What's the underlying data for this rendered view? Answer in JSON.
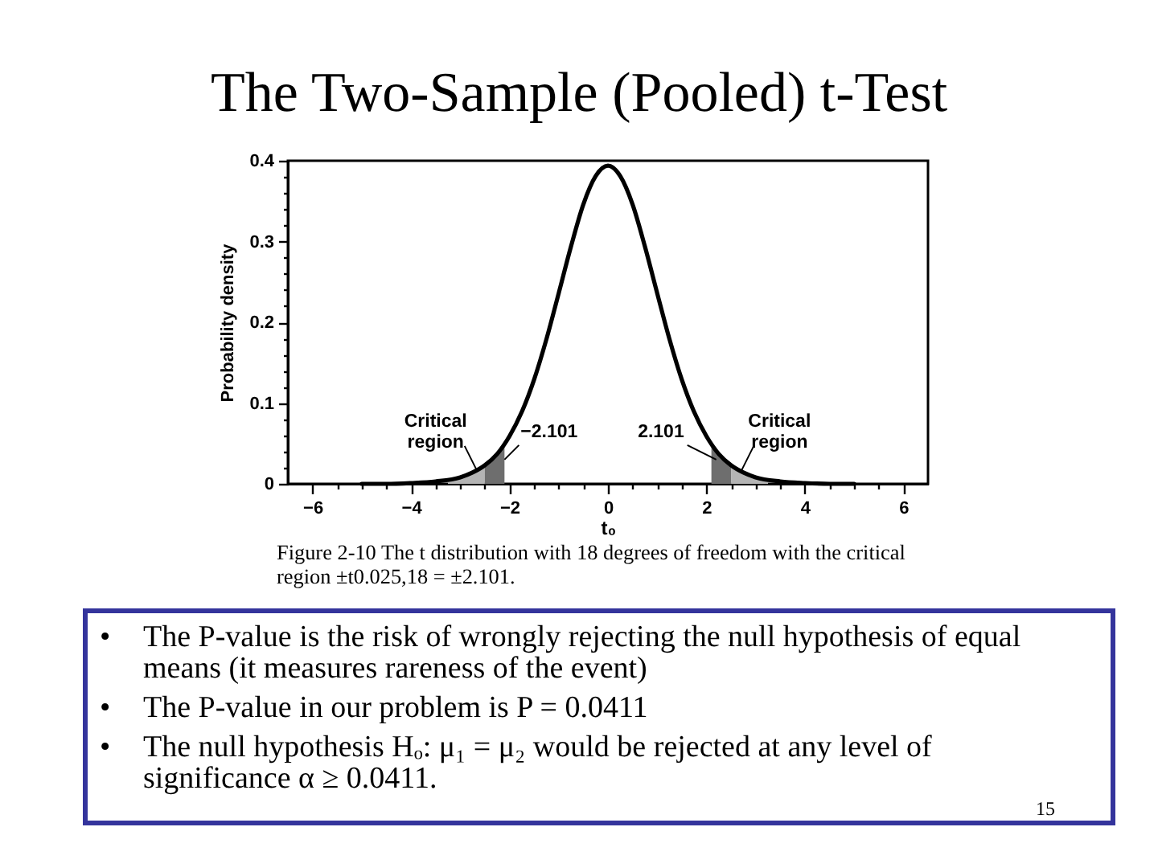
{
  "chart_data": {
    "type": "line",
    "title": "The Two-Sample (Pooled) t-Test",
    "xlabel": "t₀",
    "ylabel": "Probability density",
    "xlim": [
      -6.5,
      6.5
    ],
    "ylim": [
      0,
      0.4
    ],
    "xticks": [
      -6,
      {
        "value": -5.5,
        "label": null
      },
      {
        "value": -5,
        "label": null
      },
      {
        "value": -4.5,
        "label": null
      },
      -4,
      {
        "value": -3.5,
        "label": null
      },
      {
        "value": -3,
        "label": null
      },
      {
        "value": -2.5,
        "label": null
      },
      -2,
      {
        "value": -1.5,
        "label": null
      },
      {
        "value": -1,
        "label": null
      },
      {
        "value": -0.5,
        "label": null
      },
      0,
      {
        "value": 0.5,
        "label": null
      },
      {
        "value": 1,
        "label": null
      },
      {
        "value": 1.5,
        "label": null
      },
      2,
      {
        "value": 2.5,
        "label": null
      },
      {
        "value": 3,
        "label": null
      },
      {
        "value": 3.5,
        "label": null
      },
      4,
      {
        "value": 4.5,
        "label": null
      },
      {
        "value": 5,
        "label": null
      },
      {
        "value": 5.5,
        "label": null
      },
      6
    ],
    "yticks": [
      0,
      {
        "value": 0.02,
        "label": null
      },
      {
        "value": 0.04,
        "label": null
      },
      {
        "value": 0.06,
        "label": null
      },
      {
        "value": 0.08,
        "label": null
      },
      0.1,
      {
        "value": 0.12,
        "label": null
      },
      {
        "value": 0.14,
        "label": null
      },
      {
        "value": 0.16,
        "label": null
      },
      {
        "value": 0.18,
        "label": null
      },
      0.2,
      {
        "value": 0.22,
        "label": null
      },
      {
        "value": 0.24,
        "label": null
      },
      {
        "value": 0.26,
        "label": null
      },
      {
        "value": 0.28,
        "label": null
      },
      0.3,
      {
        "value": 0.32,
        "label": null
      },
      {
        "value": 0.34,
        "label": null
      },
      {
        "value": 0.36,
        "label": null
      },
      {
        "value": 0.38,
        "label": null
      },
      0.4
    ],
    "marker": "none",
    "line_style": "solid",
    "series": [
      {
        "type": "area",
        "color": "#b4b4b4",
        "x": [
          -3.25,
          -3,
          -2.75,
          -2.5
        ],
        "values": [
          0.005,
          0.008,
          0.014,
          0.023
        ]
      },
      {
        "type": "area",
        "color": "#6e6e6e",
        "x": [
          -2.5,
          -2.25,
          -2.101
        ],
        "values": [
          0.023,
          0.037,
          0.049
        ]
      },
      {
        "type": "area",
        "color": "#6e6e6e",
        "x": [
          2.101,
          2.25,
          2.5
        ],
        "values": [
          0.049,
          0.037,
          0.023
        ]
      },
      {
        "type": "area",
        "color": "#b4b4b4",
        "x": [
          2.5,
          2.75,
          3,
          3.25
        ],
        "values": [
          0.023,
          0.014,
          0.008,
          0.005
        ]
      },
      {
        "color": "#000000",
        "x": [
          -5,
          -4.5,
          -4,
          -3.5,
          -3,
          -2.75,
          -2.5,
          -2.25,
          -2,
          -1.75,
          -1.5,
          -1.25,
          -1,
          -0.75,
          -0.5,
          -0.25,
          0,
          0.25,
          0.5,
          0.75,
          1,
          1.25,
          1.5,
          1.75,
          2,
          2.25,
          2.5,
          2.75,
          3,
          3.5,
          4,
          4.5,
          5
        ],
        "values": [
          0.0,
          0.0,
          0.001,
          0.003,
          0.008,
          0.014,
          0.023,
          0.037,
          0.059,
          0.089,
          0.129,
          0.179,
          0.236,
          0.294,
          0.346,
          0.381,
          0.394,
          0.381,
          0.346,
          0.294,
          0.236,
          0.179,
          0.129,
          0.089,
          0.059,
          0.037,
          0.023,
          0.014,
          0.008,
          0.003,
          0.001,
          0.0,
          0.0
        ]
      }
    ],
    "annotations": [
      {
        "text": "Critical region",
        "x": -2.65,
        "y": 0.015
      },
      {
        "text": "−2.101",
        "x": -2.101,
        "y": 0.03
      },
      {
        "text": "2.101",
        "x": 2.2,
        "y": 0.03
      },
      {
        "text": "Critical region",
        "x": 2.7,
        "y": 0.015
      },
      "Figure 2-10 The t distribution with 18 degrees of freedom with the critical region ±t0.025,18 = ±2.101.",
      "• The P-value is the risk of wrongly rejecting the null hypothesis of equal means (it measures rareness of the event)",
      "• The P-value in our problem is P = 0.0411",
      "• The null hypothesis Hₒ: μ₁ = μ₂ would be rejected at any level of significance α ≥ 0.0411.",
      "15"
    ]
  }
}
